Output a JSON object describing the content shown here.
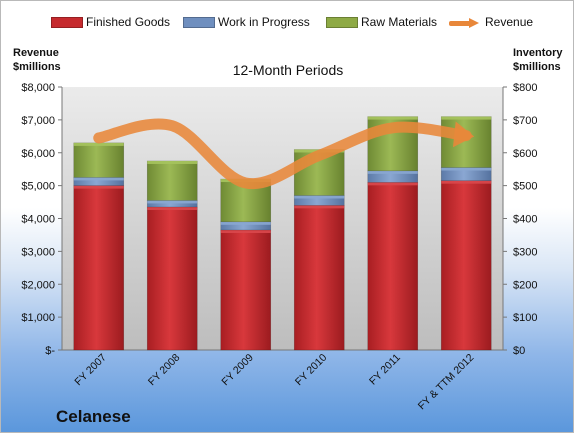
{
  "legend": {
    "finished_goods": "Finished Goods",
    "work_in_progress": "Work in Progress",
    "raw_materials": "Raw Materials",
    "revenue": "Revenue"
  },
  "company": "Celanese",
  "colors": {
    "finished_goods": "#c62a2e",
    "work_in_progress": "#6f8fbf",
    "raw_materials": "#8eaa45",
    "revenue": "#e8873a"
  },
  "chart_data": {
    "type": "bar",
    "title": "",
    "subtitle": "12-Month Periods",
    "left_axis_title": [
      "Revenue",
      "$millions"
    ],
    "right_axis_title": [
      "Inventory",
      "$millions"
    ],
    "categories": [
      "FY 2007",
      "FY 2008",
      "FY 2009",
      "FY 2010",
      "FY 2011",
      "FY & TTM 2012"
    ],
    "series": [
      {
        "name": "Finished Goods",
        "axis": "right",
        "stacked": true,
        "values": [
          500,
          435,
          365,
          440,
          510,
          515
        ]
      },
      {
        "name": "Work in Progress",
        "axis": "right",
        "stacked": true,
        "values": [
          25,
          20,
          25,
          30,
          35,
          40
        ]
      },
      {
        "name": "Raw Materials",
        "axis": "right",
        "stacked": true,
        "values": [
          105,
          120,
          130,
          140,
          165,
          155
        ]
      },
      {
        "name": "Revenue",
        "axis": "left",
        "type": "line",
        "values": [
          6450,
          6820,
          5080,
          5920,
          6760,
          6520
        ]
      }
    ],
    "left_axis": {
      "min": 0,
      "max": 8000,
      "step": 1000,
      "tick_labels": [
        "$-",
        "$1,000",
        "$2,000",
        "$3,000",
        "$4,000",
        "$5,000",
        "$6,000",
        "$7,000",
        "$8,000"
      ]
    },
    "right_axis": {
      "min": 0,
      "max": 800,
      "step": 100,
      "tick_labels": [
        "$0",
        "$100",
        "$200",
        "$300",
        "$400",
        "$500",
        "$600",
        "$700",
        "$800"
      ]
    },
    "grid": false,
    "legend_position": "top"
  }
}
